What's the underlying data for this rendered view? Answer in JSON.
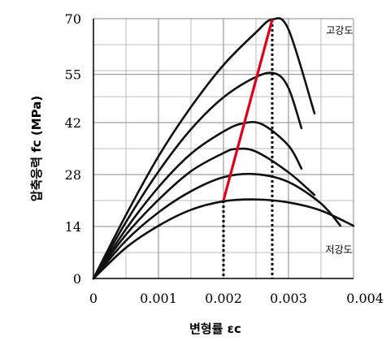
{
  "chart_data": {
    "type": "line",
    "title": "",
    "xlabel": "변형률 εc",
    "ylabel": "압축응력 fc (MPa)",
    "xlim": [
      0,
      0.004
    ],
    "ylim": [
      0,
      70
    ],
    "x_ticks": [
      0,
      0.001,
      0.002,
      0.003,
      0.004
    ],
    "x_tick_labels": [
      "0",
      "0.001",
      "0.002",
      "0.003",
      "0.004"
    ],
    "y_ticks": [
      0,
      14,
      28,
      42,
      55,
      70
    ],
    "y_tick_labels": [
      "0",
      "14",
      "28",
      "42",
      "55",
      "70"
    ],
    "grid": true,
    "series": [
      {
        "color": "#111111",
        "x": [
          0,
          0.0005,
          0.001,
          0.0015,
          0.002,
          0.0025,
          0.003,
          0.0035,
          0.004
        ],
        "y": [
          0,
          8.3,
          14.2,
          18.5,
          20.8,
          21.3,
          20.5,
          18.3,
          14.2
        ]
      },
      {
        "color": "#111111",
        "x": [
          0,
          0.0005,
          0.001,
          0.0015,
          0.002,
          0.0025,
          0.003,
          0.0035,
          0.0038
        ],
        "y": [
          0,
          10.2,
          17.8,
          23.5,
          27.3,
          28.1,
          26.0,
          20.2,
          14.2
        ]
      },
      {
        "color": "#111111",
        "x": [
          0,
          0.0005,
          0.001,
          0.0015,
          0.002,
          0.0022,
          0.0025,
          0.003,
          0.0034
        ],
        "y": [
          0,
          11.8,
          21.2,
          28.9,
          33.8,
          34.9,
          34.2,
          28.6,
          22.5
        ]
      },
      {
        "color": "#111111",
        "x": [
          0,
          0.0005,
          0.001,
          0.0015,
          0.002,
          0.0023,
          0.0026,
          0.003,
          0.0032
        ],
        "y": [
          0,
          13.3,
          24.6,
          33.6,
          39.6,
          41.8,
          41.5,
          35.8,
          29.6
        ]
      },
      {
        "color": "#111111",
        "x": [
          0,
          0.0005,
          0.001,
          0.0015,
          0.002,
          0.0025,
          0.0028,
          0.003,
          0.0032
        ],
        "y": [
          0,
          15.2,
          28.8,
          40.2,
          48.8,
          54.3,
          55.2,
          51.3,
          40.5
        ]
      },
      {
        "color": "#111111",
        "x": [
          0,
          0.0005,
          0.001,
          0.0015,
          0.002,
          0.0025,
          0.00275,
          0.003,
          0.0034
        ],
        "y": [
          0,
          17.1,
          32.9,
          46.2,
          57.5,
          66.3,
          69.8,
          67.1,
          44.5
        ]
      }
    ],
    "annotations": [
      {
        "text": "고강도",
        "x": 0.00358,
        "y": 67
      },
      {
        "text": "저강도",
        "x": 0.00357,
        "y": 8
      }
    ],
    "highlight_line": {
      "color": "#e0001b",
      "x": [
        0.002,
        0.00275
      ],
      "y": [
        21.0,
        69.8
      ]
    },
    "dotted_verticals": [
      0.002,
      0.00275
    ]
  }
}
